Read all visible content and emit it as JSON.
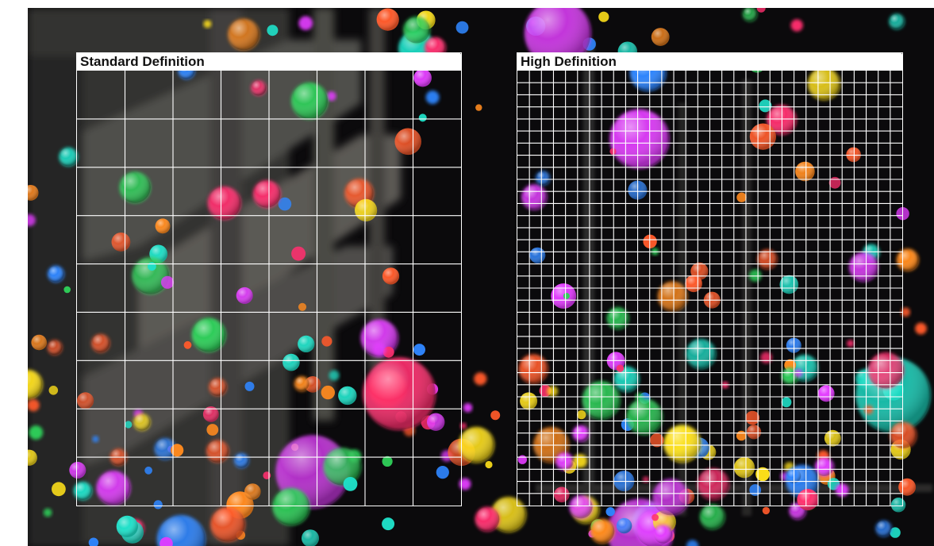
{
  "panels": {
    "standard": {
      "title": "Standard Definition",
      "grid_columns": 8,
      "grid_rows": 9
    },
    "high": {
      "title": "High Definition",
      "grid_columns": 32,
      "grid_rows": 36
    }
  },
  "colors": {
    "grid_line": "#ffffff",
    "title_background": "#ffffff",
    "title_text": "#111111",
    "scene_background": "#0b0a0c",
    "ball_palette": [
      "#ff2f6e",
      "#ff5a2a",
      "#ffe11a",
      "#2fd15a",
      "#2f86ff",
      "#e33cff",
      "#ff8a1e",
      "#1fe0c8"
    ]
  }
}
